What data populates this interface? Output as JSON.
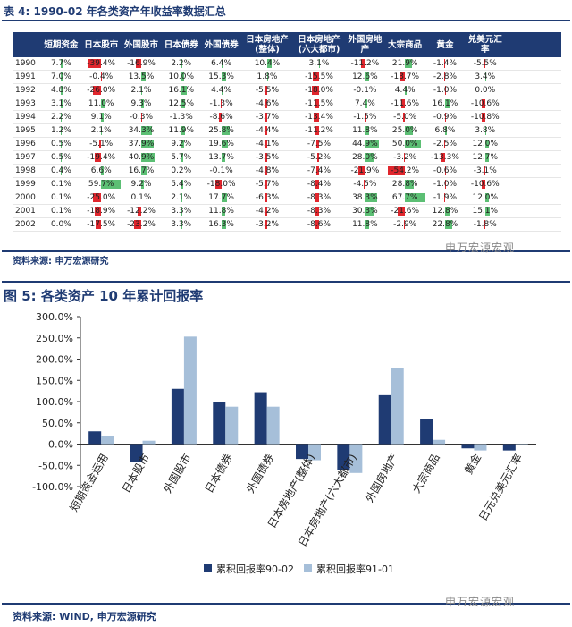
{
  "table": {
    "title": "表 4:  1990-02 年各类资产年收益率数据汇总",
    "columns": [
      "短期资金",
      "日本股市",
      "外国股市",
      "日本债券",
      "外国债券",
      "日本房地产\n(整体)",
      "日本房地产\n(六大都市)",
      "外国房地产",
      "大宗商品",
      "黄金",
      "兑美元汇率"
    ],
    "rows": [
      {
        "year": "1990",
        "values": [
          "7.7%",
          "-39.4%",
          "-16.9%",
          "2.2%",
          "6.4%",
          "10.4%",
          "3.1%",
          "-11.2%",
          "21.9%",
          "-1.4%",
          "-5.5%"
        ]
      },
      {
        "year": "1991",
        "values": [
          "7.0%",
          "-0.4%",
          "13.5%",
          "10.0%",
          "15.3%",
          "1.8%",
          "-15.5%",
          "12.6%",
          "-13.7%",
          "-2.8%",
          "3.4%"
        ]
      },
      {
        "year": "1992",
        "values": [
          "4.8%",
          "-26.0%",
          "2.1%",
          "16.1%",
          "4.4%",
          "-5.5%",
          "-18.0%",
          "-0.1%",
          "4.4%",
          "-1.0%",
          "0.0%"
        ]
      },
      {
        "year": "1993",
        "values": [
          "3.1%",
          "11.0%",
          "9.3%",
          "12.5%",
          "-1.3%",
          "-4.6%",
          "-11.5%",
          "7.4%",
          "-11.6%",
          "16.1%",
          "-10.6%"
        ]
      },
      {
        "year": "1994",
        "values": [
          "2.2%",
          "9.1%",
          "-0.3%",
          "-1.3%",
          "-8.6%",
          "-3.7%",
          "-13.4%",
          "-1.5%",
          "-5.0%",
          "-0.9%",
          "-10.8%"
        ]
      },
      {
        "year": "1995",
        "values": [
          "1.2%",
          "2.1%",
          "34.3%",
          "11.9%",
          "25.8%",
          "-4.4%",
          "-11.2%",
          "11.8%",
          "25.0%",
          "6.8%",
          "3.8%"
        ]
      },
      {
        "year": "1996",
        "values": [
          "0.5%",
          "-5.1%",
          "37.9%",
          "9.2%",
          "19.6%",
          "-4.1%",
          "-7.5%",
          "44.9%",
          "50.0%",
          "-2.5%",
          "12.0%"
        ]
      },
      {
        "year": "1997",
        "values": [
          "0.5%",
          "-19.4%",
          "40.9%",
          "5.7%",
          "13.7%",
          "-3.5%",
          "-5.2%",
          "28.0%",
          "-3.2%",
          "-13.3%",
          "12.7%"
        ]
      },
      {
        "year": "1998",
        "values": [
          "0.4%",
          "6.6%",
          "16.7%",
          "0.2%",
          "-0.1%",
          "-4.8%",
          "-7.4%",
          "-21.9%",
          "-54.2%",
          "-0.6%",
          "-3.1%"
        ]
      },
      {
        "year": "1999",
        "values": [
          "0.1%",
          "59.7%",
          "9.2%",
          "5.4%",
          "-18.0%",
          "-5.7%",
          "-8.4%",
          "-4.5%",
          "28.8%",
          "-1.0%",
          "-10.6%"
        ]
      },
      {
        "year": "2000",
        "values": [
          "0.1%",
          "-25.0%",
          "0.1%",
          "2.1%",
          "17.7%",
          "-6.3%",
          "-8.3%",
          "38.3%",
          "67.7%",
          "-1.9%",
          "12.0%"
        ]
      },
      {
        "year": "2001",
        "values": [
          "0.1%",
          "-18.9%",
          "-12.2%",
          "3.3%",
          "11.8%",
          "-4.2%",
          "-8.3%",
          "30.3%",
          "-21.6%",
          "12.8%",
          "15.1%"
        ]
      },
      {
        "year": "2002",
        "values": [
          "0.0%",
          "-17.5%",
          "-23.2%",
          "3.3%",
          "16.3%",
          "-3.2%",
          "-8.6%",
          "11.8%",
          "-2.9%",
          "22.8%",
          "-1.8%"
        ]
      }
    ],
    "source": "资料来源: 申万宏源研究",
    "colors": {
      "header": "#1f3b73",
      "positive": "#5cbf74",
      "negative": "#e0262d"
    }
  },
  "watermark": "申万宏源宏观",
  "figure": {
    "title": "图 5: 各类资产 10 年累计回报率",
    "source": "资料来源: WIND, 申万宏源研究"
  },
  "chart_data": {
    "type": "bar",
    "categories": [
      "短期资金运用",
      "日本股市",
      "外国股市",
      "日本债券",
      "外国债券",
      "日本房地产(整体)",
      "日本房地产(六大都市)",
      "外国房地产",
      "大宗商品",
      "黄金",
      "日元兑美元汇率"
    ],
    "series": [
      {
        "name": "累积回报率90-02",
        "color": "#1f3b73",
        "values": [
          30,
          -42,
          130,
          100,
          122,
          -35,
          -62,
          115,
          60,
          -10,
          -15
        ]
      },
      {
        "name": "累积回报率91-01",
        "color": "#a6bfd9",
        "values": [
          20,
          8,
          253,
          88,
          88,
          -38,
          -68,
          180,
          10,
          -15,
          -2
        ]
      }
    ],
    "ylim": [
      -100,
      300
    ],
    "yticks": [
      "-100.0%",
      "-50.0%",
      "0.0%",
      "50.0%",
      "100.0%",
      "150.0%",
      "200.0%",
      "250.0%",
      "300.0%"
    ],
    "legend": "bottom"
  }
}
